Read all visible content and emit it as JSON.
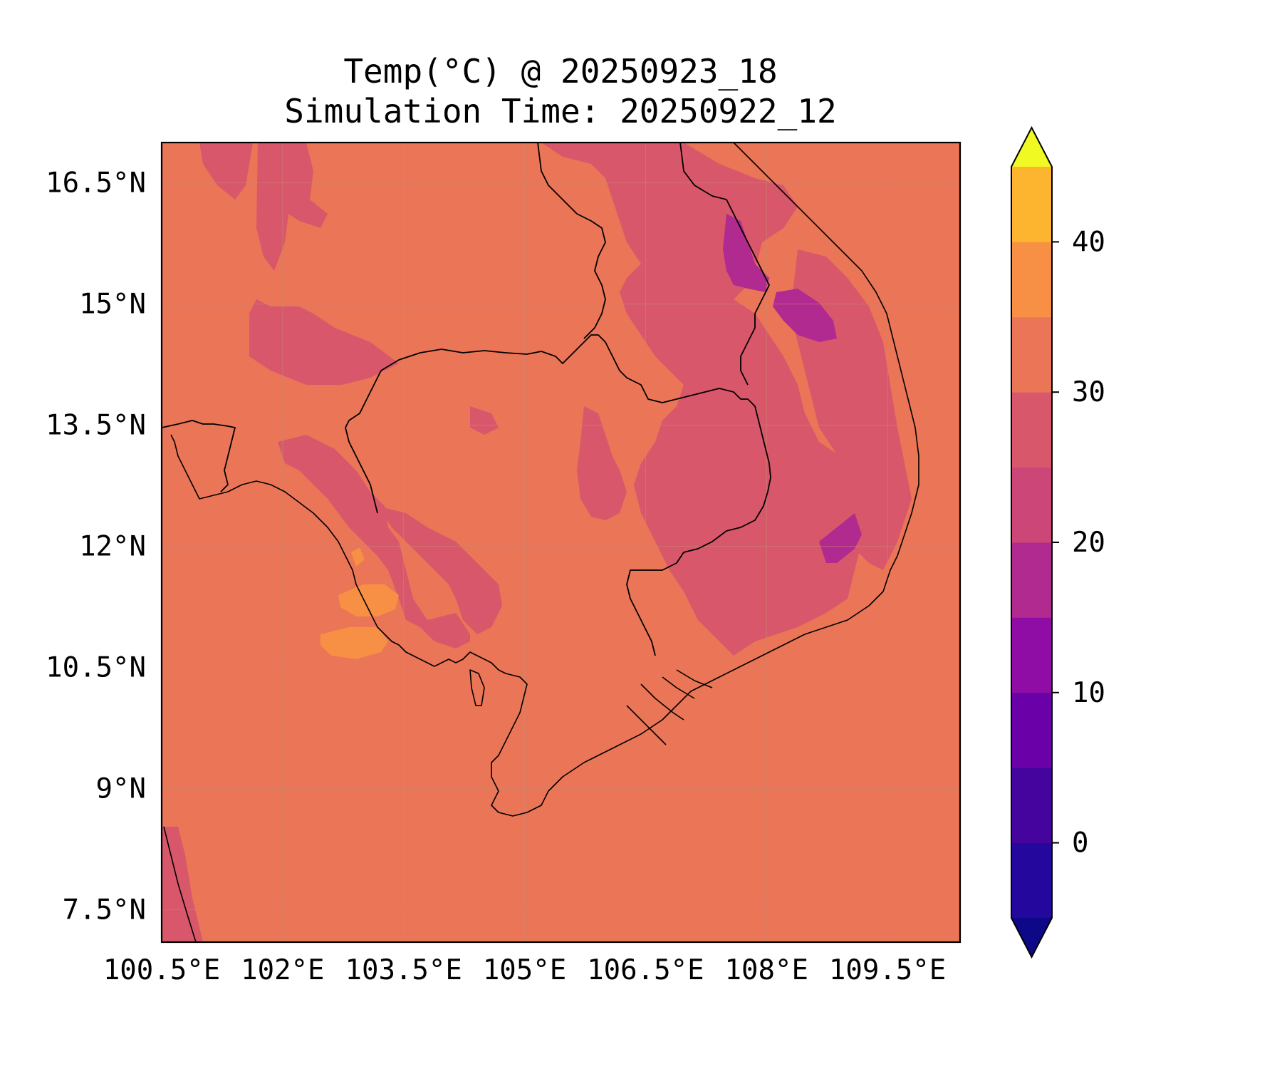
{
  "title": {
    "line1": "Temp(°C) @ 20250923_18",
    "line2": "Simulation Time: 20250922_12"
  },
  "map": {
    "projection": "PlateCarree",
    "lon_range": [
      100.5,
      110.4
    ],
    "lat_range": [
      7.1,
      17.0
    ],
    "background_color": "#ea7557",
    "lon_ticks": [
      {
        "value": 100.5,
        "label": "100.5°E"
      },
      {
        "value": 102.0,
        "label": "102°E"
      },
      {
        "value": 103.5,
        "label": "103.5°E"
      },
      {
        "value": 105.0,
        "label": "105°E"
      },
      {
        "value": 106.5,
        "label": "106.5°E"
      },
      {
        "value": 108.0,
        "label": "108°E"
      },
      {
        "value": 109.5,
        "label": "109.5°E"
      }
    ],
    "lat_ticks": [
      {
        "value": 16.5,
        "label": "16.5°N"
      },
      {
        "value": 15.0,
        "label": "15°N"
      },
      {
        "value": 13.5,
        "label": "13.5°N"
      },
      {
        "value": 12.0,
        "label": "12°N"
      },
      {
        "value": 10.5,
        "label": "10.5°N"
      },
      {
        "value": 9.0,
        "label": "9°N"
      },
      {
        "value": 7.5,
        "label": "7.5°N"
      }
    ],
    "gridlines": true
  },
  "colorbar": {
    "levels": [
      -5,
      0,
      5,
      10,
      15,
      20,
      25,
      30,
      35,
      40,
      45
    ],
    "colors": [
      "#24079d",
      "#46049f",
      "#6a00a8",
      "#8f0da4",
      "#b02a90",
      "#cc4778",
      "#d8576b",
      "#ea7557",
      "#f79044",
      "#fdb42f",
      "#f3e12a"
    ],
    "under_color": "#0d0887",
    "over_color": "#f0f921",
    "extend": "both",
    "ticks": [
      {
        "value": 0,
        "label": "0"
      },
      {
        "value": 10,
        "label": "10"
      },
      {
        "value": 20,
        "label": "20"
      },
      {
        "value": 30,
        "label": "30"
      },
      {
        "value": 40,
        "label": "40"
      }
    ]
  }
}
